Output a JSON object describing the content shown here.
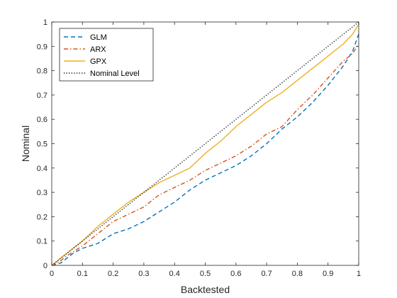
{
  "chart_data": {
    "type": "line",
    "xlabel": "Backtested",
    "ylabel": "Nominal",
    "xlim": [
      0,
      1
    ],
    "ylim": [
      0,
      1
    ],
    "xticks": [
      "0",
      "0.1",
      "0.2",
      "0.3",
      "0.4",
      "0.5",
      "0.6",
      "0.7",
      "0.8",
      "0.9",
      "1"
    ],
    "yticks": [
      "0",
      "0.1",
      "0.2",
      "0.3",
      "0.4",
      "0.5",
      "0.6",
      "0.7",
      "0.8",
      "0.9",
      "1"
    ],
    "grid": false,
    "legend_position": "top-left",
    "series": [
      {
        "name": "GLM",
        "color": "#0072BD",
        "dash": "dashed",
        "x": [
          0,
          0.03,
          0.05,
          0.07,
          0.1,
          0.15,
          0.2,
          0.25,
          0.3,
          0.35,
          0.4,
          0.45,
          0.5,
          0.55,
          0.6,
          0.65,
          0.7,
          0.75,
          0.8,
          0.85,
          0.9,
          0.95,
          0.98,
          1.0
        ],
        "y": [
          0,
          0.01,
          0.03,
          0.05,
          0.07,
          0.09,
          0.13,
          0.15,
          0.18,
          0.22,
          0.26,
          0.31,
          0.35,
          0.38,
          0.41,
          0.45,
          0.5,
          0.56,
          0.61,
          0.67,
          0.74,
          0.82,
          0.88,
          0.95
        ]
      },
      {
        "name": "ARX",
        "color": "#D95319",
        "dash": "dashdot",
        "x": [
          0,
          0.03,
          0.05,
          0.1,
          0.15,
          0.2,
          0.25,
          0.3,
          0.35,
          0.4,
          0.45,
          0.5,
          0.55,
          0.6,
          0.65,
          0.7,
          0.75,
          0.8,
          0.85,
          0.9,
          0.95,
          0.98,
          1.0
        ],
        "y": [
          0,
          0.02,
          0.04,
          0.08,
          0.13,
          0.18,
          0.21,
          0.24,
          0.29,
          0.32,
          0.35,
          0.39,
          0.42,
          0.45,
          0.49,
          0.54,
          0.57,
          0.64,
          0.7,
          0.77,
          0.84,
          0.87,
          0.91
        ]
      },
      {
        "name": "GPX",
        "color": "#EDB120",
        "dash": "solid",
        "x": [
          0,
          0.05,
          0.1,
          0.15,
          0.2,
          0.25,
          0.3,
          0.35,
          0.4,
          0.45,
          0.5,
          0.55,
          0.6,
          0.65,
          0.7,
          0.75,
          0.8,
          0.85,
          0.9,
          0.95,
          0.98,
          1.0
        ],
        "y": [
          0,
          0.05,
          0.1,
          0.16,
          0.21,
          0.26,
          0.3,
          0.34,
          0.37,
          0.4,
          0.46,
          0.51,
          0.57,
          0.62,
          0.67,
          0.71,
          0.76,
          0.81,
          0.86,
          0.91,
          0.95,
          0.99
        ]
      },
      {
        "name": "Nominal Level",
        "color": "#000000",
        "dash": "dotted",
        "x": [
          0,
          1
        ],
        "y": [
          0,
          1
        ]
      }
    ]
  }
}
